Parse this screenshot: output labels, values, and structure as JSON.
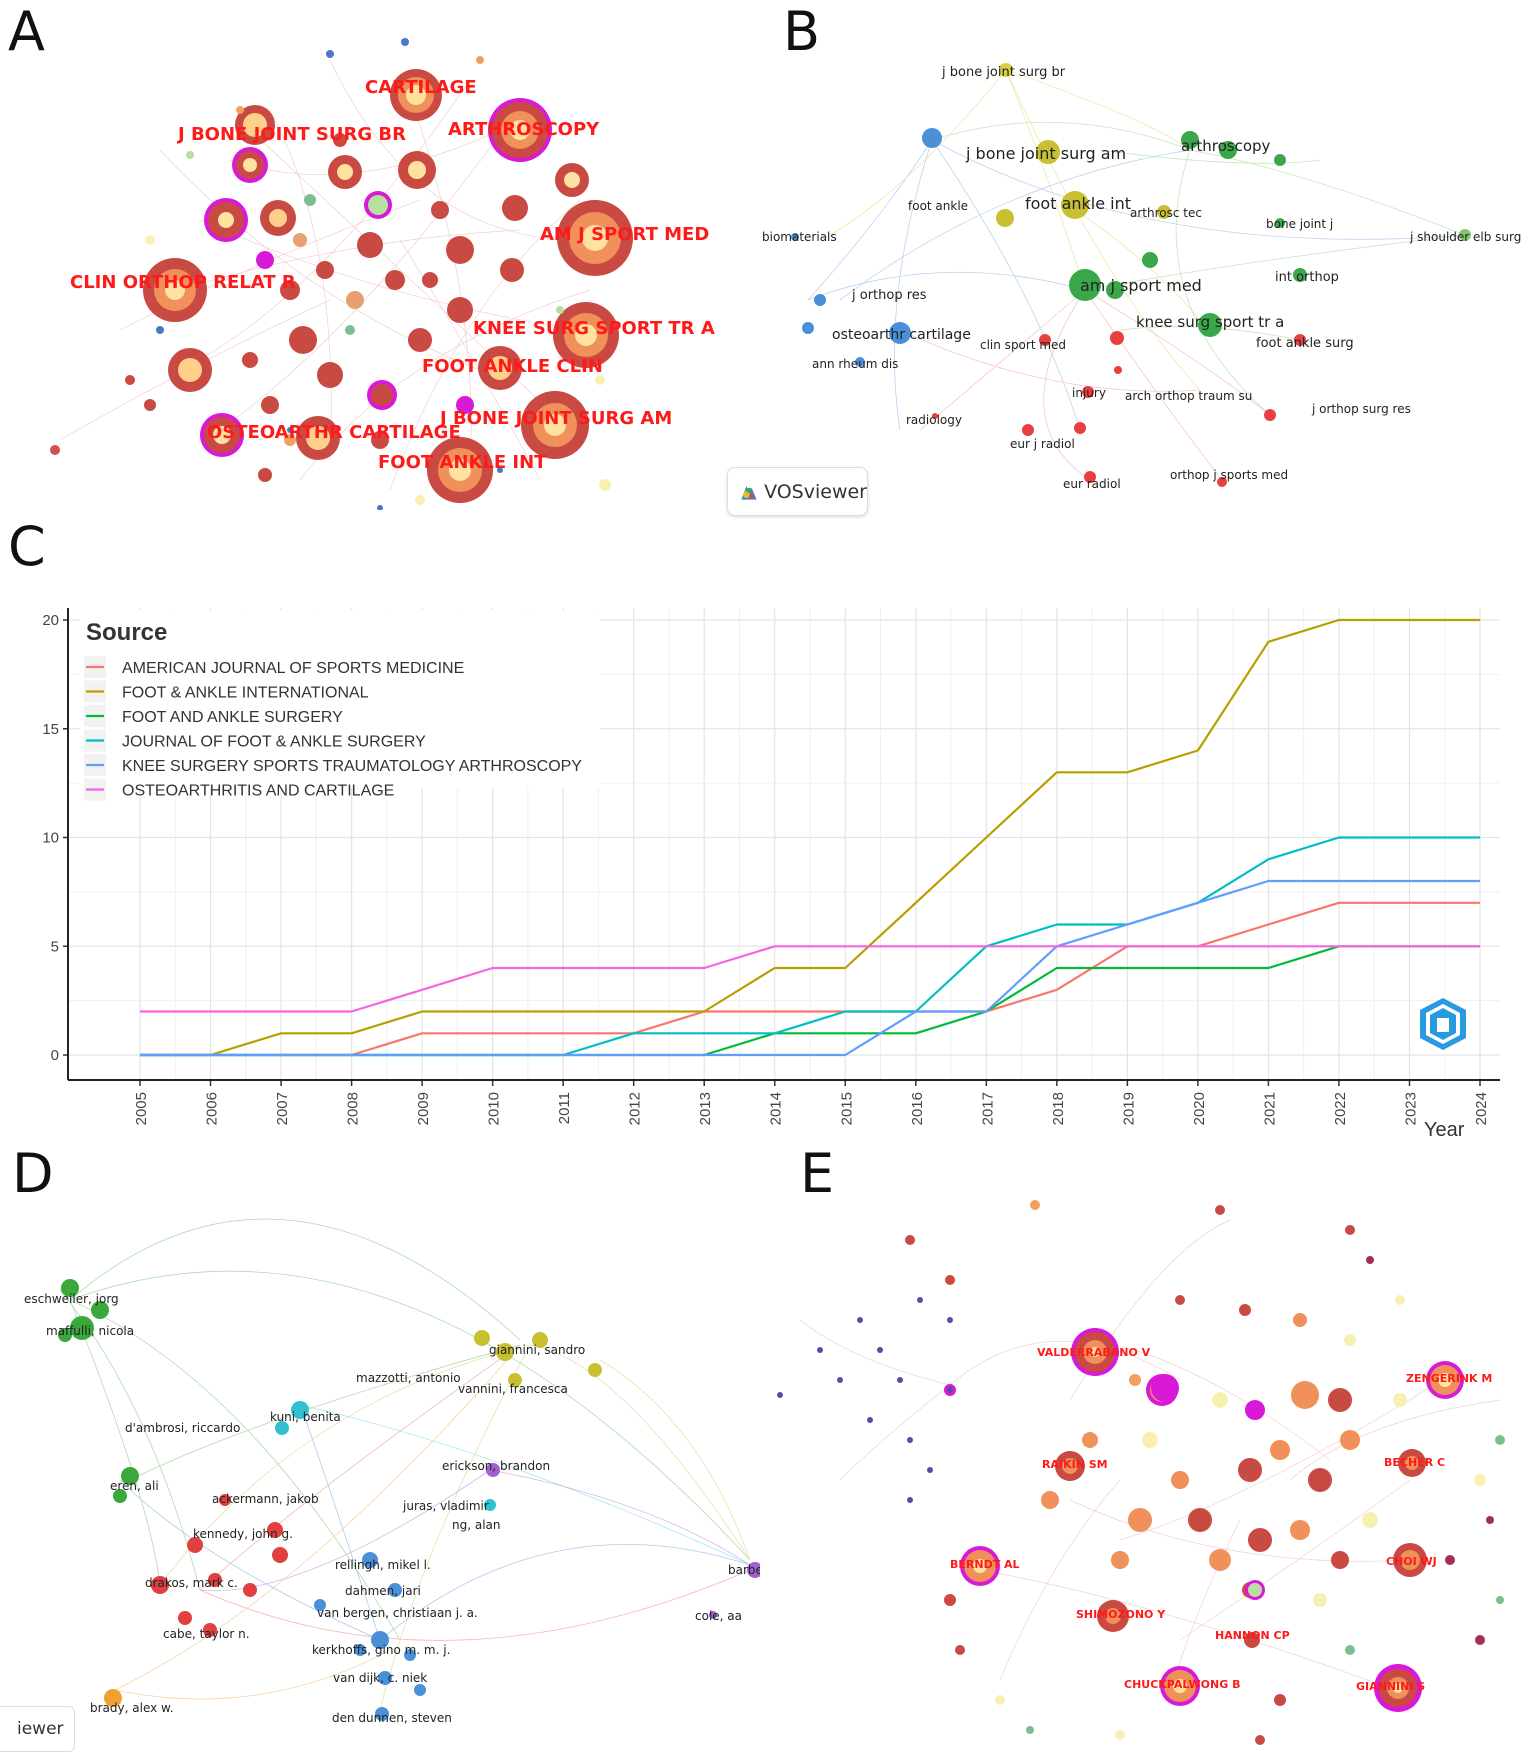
{
  "panels": {
    "a": "A",
    "b": "B",
    "c": "C",
    "d": "D",
    "e": "E"
  },
  "panel_a": {
    "labels": [
      "CARTILAGE",
      "ARTHROSCOPY",
      "J BONE JOINT SURG BR",
      "AM J SPORT MED",
      "CLIN ORTHOP RELAT R",
      "KNEE SURG SPORT TR A",
      "FOOT ANKLE CLIN",
      "J BONE JOINT SURG AM",
      "OSTEOARTHR CARTILAGE",
      "FOOT ANKLE INT"
    ]
  },
  "panel_b": {
    "labels": [
      "j bone joint surg br",
      "j bone joint surg am",
      "arthroscopy",
      "foot ankle",
      "foot ankle int",
      "arthrosc tec",
      "bone joint j",
      "biomaterials",
      "j shoulder elb surg",
      "int orthop",
      "am j sport med",
      "j orthop res",
      "knee surg sport tr a",
      "osteoarthr cartilage",
      "clin sport med",
      "foot ankle surg",
      "ann rheum dis",
      "injury",
      "arch orthop traum su",
      "j orthop surg res",
      "radiology",
      "eur j radiol",
      "eur radiol",
      "orthop j sports med"
    ],
    "badge": "VOSviewer"
  },
  "panel_d": {
    "labels": [
      "eschweiler, jorg",
      "maffulli, nicola",
      "giannini, sandro",
      "mazzotti, antonio",
      "vannini, francesca",
      "kuni, benita",
      "d'ambrosi, riccardo",
      "erickson, brandon",
      "eren, ali",
      "ackermann, jakob",
      "juras, vladimir",
      "ng, alan",
      "kennedy, john g.",
      "rellingh, mikel l.",
      "barbe",
      "drakos, mark c.",
      "dahmen, jari",
      "van bergen, christiaan j. a.",
      "cole, aa",
      "cabe, taylor n.",
      "kerkhoffs, gino m. m. j.",
      "van dijk, c. niek",
      "brady, alex w.",
      "den dunnen, steven"
    ],
    "badge": "iewer"
  },
  "panel_e": {
    "labels": [
      "VALDERRABANO V",
      "ZENGERINK M",
      "RAIKIN SM",
      "BECHER C",
      "BERNDT AL",
      "CHOI WJ",
      "SHIMOZONO Y",
      "HANNON CP",
      "CHUCKPALWONG B",
      "GIANNINI S"
    ]
  },
  "chart_data": {
    "type": "line",
    "title": "",
    "legend_title": "Source",
    "xlabel": "Year",
    "ylabel": "",
    "x": [
      2005,
      2006,
      2007,
      2008,
      2009,
      2010,
      2011,
      2012,
      2013,
      2014,
      2015,
      2016,
      2017,
      2018,
      2019,
      2020,
      2021,
      2022,
      2023,
      2024
    ],
    "ylim": [
      0,
      20
    ],
    "yticks": [
      0,
      5,
      10,
      15,
      20
    ],
    "legend_position": "top-left",
    "series": [
      {
        "name": "AMERICAN JOURNAL OF SPORTS MEDICINE",
        "color": "#F8766D",
        "values": [
          0,
          0,
          0,
          0,
          1,
          1,
          1,
          1,
          2,
          2,
          2,
          2,
          2,
          3,
          5,
          5,
          6,
          7,
          7,
          7
        ]
      },
      {
        "name": "FOOT & ANKLE INTERNATIONAL",
        "color": "#B79F00",
        "values": [
          0,
          0,
          1,
          1,
          2,
          2,
          2,
          2,
          2,
          4,
          4,
          7,
          10,
          13,
          13,
          14,
          19,
          20,
          20,
          20
        ]
      },
      {
        "name": "FOOT AND ANKLE SURGERY",
        "color": "#00BA38",
        "values": [
          0,
          0,
          0,
          0,
          0,
          0,
          0,
          0,
          0,
          1,
          1,
          1,
          2,
          4,
          4,
          4,
          4,
          5,
          5,
          5
        ]
      },
      {
        "name": "JOURNAL OF FOOT & ANKLE SURGERY",
        "color": "#00BFC4",
        "values": [
          0,
          0,
          0,
          0,
          0,
          0,
          0,
          1,
          1,
          1,
          2,
          2,
          5,
          6,
          6,
          7,
          9,
          10,
          10,
          10
        ]
      },
      {
        "name": "KNEE SURGERY SPORTS TRAUMATOLOGY ARTHROSCOPY",
        "color": "#619CFF",
        "values": [
          0,
          0,
          0,
          0,
          0,
          0,
          0,
          0,
          0,
          0,
          0,
          2,
          2,
          5,
          6,
          7,
          8,
          8,
          8,
          8
        ]
      },
      {
        "name": "OSTEOARTHRITIS AND CARTILAGE",
        "color": "#F564E3",
        "values": [
          2,
          2,
          2,
          2,
          3,
          4,
          4,
          4,
          4,
          5,
          5,
          5,
          5,
          5,
          5,
          5,
          5,
          5,
          5,
          5
        ]
      }
    ]
  }
}
